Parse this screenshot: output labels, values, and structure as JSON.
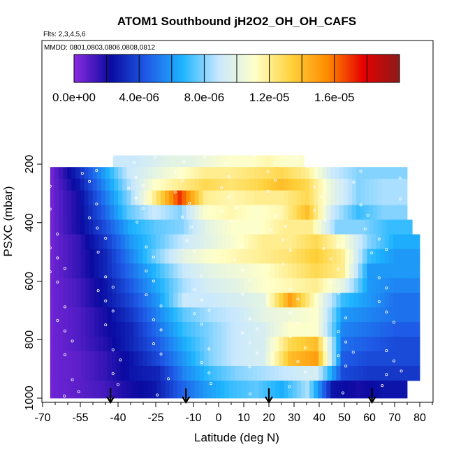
{
  "chart_data": {
    "type": "heatmap",
    "title": "ATOM1 Southbound jH2O2_OH_OH_CAFS",
    "subtitle_flights": "Flts: 2,3,4,5,6",
    "dates_label": "MMDD: 0801,0803,0806,0808,0812",
    "xlabel": "Latitude (deg N)",
    "ylabel": "PSXC (mbar)",
    "xlim": [
      -70,
      85
    ],
    "ylim": [
      1000,
      0
    ],
    "x_ticks": [
      "-70",
      "-55",
      "-40",
      "-25",
      "-10",
      "0",
      "10",
      "20",
      "30",
      "40",
      "50",
      "60",
      "70",
      "80"
    ],
    "x_tick_values": [
      -70,
      -55,
      -40,
      -25,
      -10,
      0,
      10,
      20,
      30,
      40,
      50,
      60,
      70,
      80
    ],
    "y_ticks": [
      "200",
      "400",
      "600",
      "800",
      "1000"
    ],
    "y_tick_values": [
      200,
      400,
      600,
      800,
      1000
    ],
    "colorbar": {
      "ticks": [
        "0.0e+00",
        "4.0e-06",
        "8.0e-06",
        "1.2e-05",
        "1.6e-05"
      ],
      "tick_values": [
        0.0,
        4e-06,
        8e-06,
        1.2e-05,
        1.6e-05
      ],
      "vmin": 0.0,
      "vmax": 2e-05,
      "colors": [
        "#8a2be2",
        "#0a0aa0",
        "#1e5ae6",
        "#1eb4ff",
        "#c8e8ff",
        "#ffffc8",
        "#ffd23c",
        "#ff8c00",
        "#e60000",
        "#8b1a1a"
      ]
    },
    "arrow_latitudes": [
      -43,
      -13,
      20,
      61
    ],
    "grid": false,
    "legend": "colorbar-top",
    "pressure_bands": [
      {
        "p_top": 170,
        "p_bottom": 210,
        "lat_start": -42,
        "lat_end": 34,
        "values": [
          9e-06,
          9e-06,
          9.5e-06,
          1e-05,
          1e-05,
          1.05e-05,
          1.1e-05,
          1.1e-05,
          1.15e-05,
          1.1e-05
        ]
      },
      {
        "p_top": 210,
        "p_bottom": 250,
        "lat_start": -67,
        "lat_end": 75,
        "values": [
          5e-07,
          3e-06,
          6e-06,
          9e-06,
          1e-05,
          1.1e-05,
          1.2e-05,
          1.2e-05,
          1.25e-05,
          1.3e-05,
          1.2e-05,
          9e-06,
          8e-06,
          8e-06
        ]
      },
      {
        "p_top": 250,
        "p_bottom": 290,
        "lat_start": -67,
        "lat_end": 75,
        "values": [
          5e-07,
          2.5e-06,
          5.5e-06,
          8.5e-06,
          1.1e-05,
          1.2e-05,
          1.3e-05,
          1.25e-05,
          1.3e-05,
          1.4e-05,
          1.3e-05,
          1e-05,
          8e-06,
          8.5e-06
        ]
      },
      {
        "p_top": 290,
        "p_bottom": 340,
        "lat_start": -67,
        "lat_end": 75,
        "values": [
          5e-07,
          2e-06,
          5e-06,
          8e-06,
          1.2e-05,
          1.7e-05,
          1.2e-05,
          1.15e-05,
          1.2e-05,
          1.2e-05,
          1.3e-05,
          1e-05,
          8e-06,
          8.5e-06
        ]
      },
      {
        "p_top": 340,
        "p_bottom": 390,
        "lat_start": -67,
        "lat_end": 75,
        "values": [
          5e-07,
          2e-06,
          4.5e-06,
          7.5e-06,
          9e-06,
          8e-06,
          1.1e-05,
          1.15e-05,
          1.1e-05,
          1.15e-05,
          1.4e-05,
          9e-06,
          7e-06,
          8e-06
        ]
      },
      {
        "p_top": 390,
        "p_bottom": 440,
        "lat_start": -67,
        "lat_end": 77,
        "values": [
          5e-07,
          2e-06,
          4e-06,
          6.5e-06,
          7.5e-06,
          8e-06,
          1e-05,
          1.1e-05,
          1.1e-05,
          1.2e-05,
          1.2e-05,
          8e-06,
          8e-06,
          7e-06
        ]
      },
      {
        "p_top": 440,
        "p_bottom": 490,
        "lat_start": -67,
        "lat_end": 80,
        "values": [
          5e-07,
          1.5e-06,
          3.5e-06,
          6e-06,
          7.5e-06,
          9e-06,
          1e-05,
          1.1e-05,
          1.2e-05,
          1.2e-05,
          1.3e-05,
          1.1e-05,
          8e-06,
          6.5e-06
        ]
      },
      {
        "p_top": 490,
        "p_bottom": 540,
        "lat_start": -67,
        "lat_end": 80,
        "values": [
          5e-07,
          1.5e-06,
          3e-06,
          5.5e-06,
          8e-06,
          1e-05,
          1.1e-05,
          1.15e-05,
          1.2e-05,
          1.25e-05,
          1.35e-05,
          1.2e-05,
          7e-06,
          6e-06
        ]
      },
      {
        "p_top": 540,
        "p_bottom": 590,
        "lat_start": -67,
        "lat_end": 80,
        "values": [
          5e-07,
          1.5e-06,
          3e-06,
          5e-06,
          7e-06,
          9e-06,
          1e-05,
          1.05e-05,
          1.1e-05,
          1.2e-05,
          1.3e-05,
          1.2e-05,
          6e-06,
          6e-06
        ]
      },
      {
        "p_top": 590,
        "p_bottom": 640,
        "lat_start": -67,
        "lat_end": 80,
        "values": [
          5e-07,
          1.2e-06,
          2.5e-06,
          4.5e-06,
          6.5e-06,
          8.5e-06,
          9.5e-06,
          1e-05,
          1.1e-05,
          1.15e-05,
          1.2e-05,
          1e-05,
          6e-06,
          5.5e-06
        ]
      },
      {
        "p_top": 640,
        "p_bottom": 690,
        "lat_start": -67,
        "lat_end": 80,
        "values": [
          5e-07,
          1.2e-06,
          2.5e-06,
          4e-06,
          6e-06,
          9e-06,
          9e-06,
          9.5e-06,
          1e-05,
          1.5e-05,
          1.1e-05,
          7e-06,
          6e-06,
          5e-06
        ]
      },
      {
        "p_top": 690,
        "p_bottom": 740,
        "lat_start": -67,
        "lat_end": 80,
        "values": [
          5e-07,
          1e-06,
          2e-06,
          3.5e-06,
          5.5e-06,
          7.5e-06,
          8.5e-06,
          9e-06,
          1e-05,
          1.05e-05,
          1.1e-05,
          6e-06,
          5.5e-06,
          5e-06
        ]
      },
      {
        "p_top": 740,
        "p_bottom": 790,
        "lat_start": -67,
        "lat_end": 80,
        "values": [
          5e-07,
          1e-06,
          2e-06,
          3e-06,
          5e-06,
          7e-06,
          8e-06,
          9e-06,
          9.5e-06,
          1.1e-05,
          1.1e-05,
          5.5e-06,
          5e-06,
          4.5e-06
        ]
      },
      {
        "p_top": 790,
        "p_bottom": 840,
        "lat_start": -67,
        "lat_end": 80,
        "values": [
          5e-07,
          1e-06,
          1.8e-06,
          3e-06,
          4.5e-06,
          6.5e-06,
          8e-06,
          9e-06,
          9.5e-06,
          1.3e-05,
          1.4e-05,
          5e-06,
          4.5e-06,
          4e-06
        ]
      },
      {
        "p_top": 840,
        "p_bottom": 890,
        "lat_start": -67,
        "lat_end": 80,
        "values": [
          5e-07,
          8e-07,
          1.5e-06,
          2.5e-06,
          4e-06,
          6e-06,
          8e-06,
          9e-06,
          9.5e-06,
          1.4e-05,
          1.5e-05,
          4.5e-06,
          4e-06,
          4e-06
        ]
      },
      {
        "p_top": 890,
        "p_bottom": 940,
        "lat_start": -67,
        "lat_end": 80,
        "values": [
          5e-07,
          8e-07,
          1.5e-06,
          2.5e-06,
          3e-06,
          5.5e-06,
          7e-06,
          8e-06,
          8.5e-06,
          9e-06,
          9.5e-06,
          4e-06,
          3.5e-06,
          3.5e-06
        ]
      },
      {
        "p_top": 940,
        "p_bottom": 1000,
        "lat_start": -67,
        "lat_end": 75,
        "values": [
          5e-07,
          8e-07,
          1.2e-06,
          2e-06,
          2.5e-06,
          4.5e-06,
          6e-06,
          7e-06,
          7.5e-06,
          6.5e-06,
          8.5e-06,
          2.5e-06,
          2e-06,
          2.5e-06
        ]
      }
    ]
  }
}
